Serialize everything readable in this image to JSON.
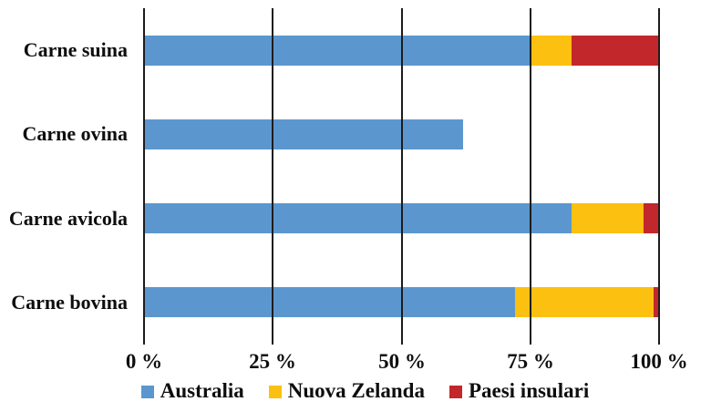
{
  "chart_data": {
    "type": "bar",
    "orientation": "horizontal",
    "stacked": true,
    "title": "",
    "categories": [
      "Carne suina",
      "Carne ovina",
      "Carne avicola",
      "Carne bovina"
    ],
    "series": [
      {
        "name": "Australia",
        "color": "#5b97ce",
        "values": [
          75,
          62,
          83,
          72
        ]
      },
      {
        "name": "Nuova Zelanda",
        "color": "#fcc011",
        "values": [
          8,
          0,
          14,
          27
        ]
      },
      {
        "name": "Paesi insulari",
        "color": "#c2272b",
        "values": [
          17,
          0,
          3,
          1
        ]
      }
    ],
    "x_ticks": [
      {
        "value": 0,
        "label": "0 %"
      },
      {
        "value": 25,
        "label": "25 %"
      },
      {
        "value": 50,
        "label": "50 %"
      },
      {
        "value": 75,
        "label": "75 %"
      },
      {
        "value": 100,
        "label": "100 %"
      }
    ],
    "xlim": [
      0,
      100
    ],
    "grid": "vertical-gridlines-over-bars",
    "gridline_color": "#1c1c1c",
    "background": "#ffffff",
    "text_color": "#0e0e0e",
    "legend_position": "bottom"
  }
}
